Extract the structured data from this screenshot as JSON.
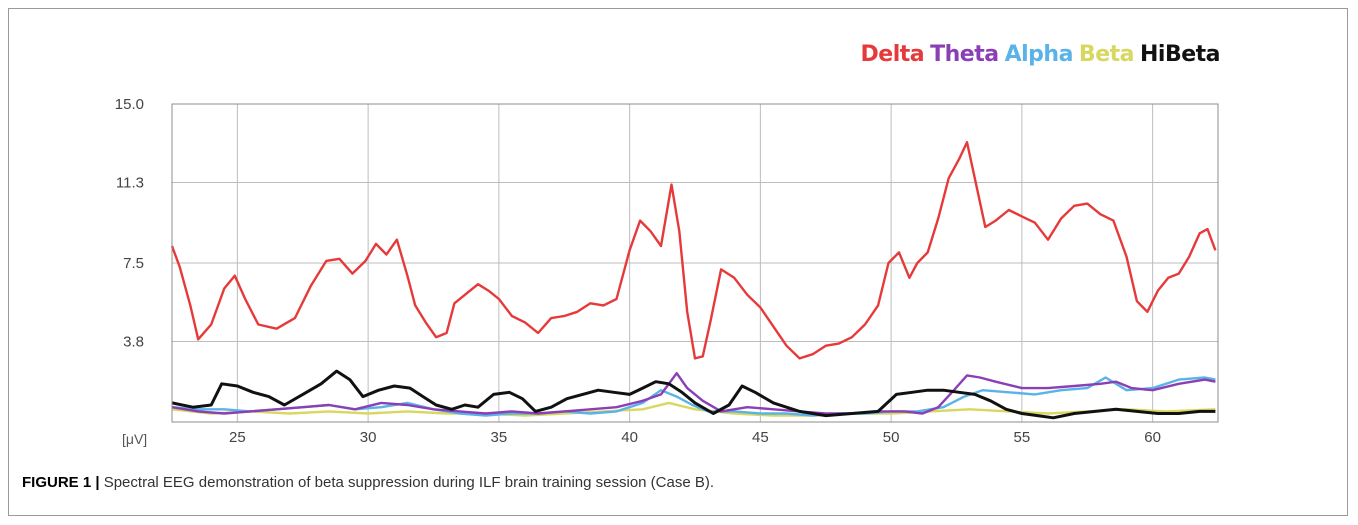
{
  "chart_data": {
    "type": "line",
    "title": "",
    "xlabel": "",
    "ylabel": "[μV]",
    "xlim": [
      22.5,
      62.5
    ],
    "ylim": [
      0,
      15.0
    ],
    "x_ticks": [
      25,
      30,
      35,
      40,
      45,
      50,
      55,
      60
    ],
    "y_ticks": [
      3.8,
      7.5,
      11.3,
      15.0
    ],
    "y_tick_labels": [
      "3.8",
      "7.5",
      "11.3",
      "15.0"
    ],
    "x_tick_labels": [
      "25",
      "30",
      "35",
      "40",
      "45",
      "50",
      "55",
      "60"
    ],
    "grid": true,
    "legend_position": "top-right",
    "series": [
      {
        "name": "Delta",
        "color": "#e63a3a",
        "x": [
          22.5,
          22.8,
          23.2,
          23.5,
          24.0,
          24.5,
          24.9,
          25.3,
          25.8,
          26.5,
          27.2,
          27.8,
          28.4,
          28.9,
          29.4,
          29.9,
          30.3,
          30.7,
          31.1,
          31.5,
          31.8,
          32.2,
          32.6,
          33.0,
          33.3,
          33.7,
          34.2,
          34.6,
          35.0,
          35.5,
          36.0,
          36.5,
          37.0,
          37.5,
          38.0,
          38.5,
          39.0,
          39.5,
          40.0,
          40.4,
          40.8,
          41.2,
          41.6,
          41.9,
          42.2,
          42.5,
          42.8,
          43.1,
          43.5,
          44.0,
          44.5,
          45.0,
          45.5,
          46.0,
          46.5,
          47.0,
          47.5,
          48.0,
          48.5,
          49.0,
          49.5,
          49.9,
          50.3,
          50.7,
          51.0,
          51.4,
          51.8,
          52.2,
          52.6,
          52.9,
          53.2,
          53.6,
          54.0,
          54.5,
          55.0,
          55.5,
          56.0,
          56.5,
          57.0,
          57.5,
          58.0,
          58.5,
          59.0,
          59.4,
          59.8,
          60.2,
          60.6,
          61.0,
          61.4,
          61.8,
          62.1,
          62.4
        ],
        "y": [
          8.3,
          7.3,
          5.5,
          3.9,
          4.6,
          6.3,
          6.9,
          5.8,
          4.6,
          4.4,
          4.9,
          6.4,
          7.6,
          7.7,
          7.0,
          7.6,
          8.4,
          7.9,
          8.6,
          6.9,
          5.5,
          4.7,
          4.0,
          4.2,
          5.6,
          6.0,
          6.5,
          6.2,
          5.8,
          5.0,
          4.7,
          4.2,
          4.9,
          5.0,
          5.2,
          5.6,
          5.5,
          5.8,
          8.1,
          9.5,
          9.0,
          8.3,
          11.2,
          9.0,
          5.2,
          3.0,
          3.1,
          4.8,
          7.2,
          6.8,
          6.0,
          5.4,
          4.5,
          3.6,
          3.0,
          3.2,
          3.6,
          3.7,
          4.0,
          4.6,
          5.5,
          7.5,
          8.0,
          6.8,
          7.5,
          8.0,
          9.6,
          11.5,
          12.4,
          13.2,
          11.5,
          9.2,
          9.5,
          10.0,
          9.7,
          9.4,
          8.6,
          9.6,
          10.2,
          10.3,
          9.8,
          9.5,
          7.8,
          5.7,
          5.2,
          6.2,
          6.8,
          7.0,
          7.8,
          8.9,
          9.1,
          8.1
        ]
      },
      {
        "name": "Theta",
        "color": "#8b3fb5",
        "x": [
          22.5,
          23.5,
          24.5,
          25.5,
          26.5,
          27.5,
          28.5,
          29.5,
          30.5,
          31.5,
          32.5,
          33.5,
          34.5,
          35.5,
          36.5,
          37.5,
          38.5,
          39.5,
          40.5,
          41.2,
          41.8,
          42.2,
          42.8,
          43.5,
          44.5,
          45.5,
          46.5,
          47.5,
          48.5,
          49.5,
          50.5,
          51.2,
          51.8,
          52.4,
          52.9,
          53.4,
          54.0,
          55.0,
          56.0,
          57.0,
          58.0,
          58.6,
          59.2,
          60.0,
          61.0,
          62.0,
          62.4
        ],
        "y": [
          0.7,
          0.5,
          0.4,
          0.5,
          0.6,
          0.7,
          0.8,
          0.6,
          0.9,
          0.8,
          0.6,
          0.5,
          0.4,
          0.5,
          0.4,
          0.5,
          0.6,
          0.7,
          1.0,
          1.3,
          2.3,
          1.6,
          1.0,
          0.5,
          0.7,
          0.6,
          0.5,
          0.4,
          0.4,
          0.5,
          0.5,
          0.4,
          0.7,
          1.5,
          2.2,
          2.1,
          1.9,
          1.6,
          1.6,
          1.7,
          1.8,
          1.9,
          1.6,
          1.5,
          1.8,
          2.0,
          1.9
        ]
      },
      {
        "name": "Alpha",
        "color": "#5ab3e8",
        "x": [
          22.5,
          23.5,
          24.5,
          25.5,
          26.5,
          27.5,
          28.5,
          29.5,
          30.5,
          31.5,
          32.5,
          33.5,
          34.5,
          35.5,
          36.5,
          37.5,
          38.5,
          39.5,
          40.5,
          41.2,
          41.8,
          42.4,
          43.0,
          44.0,
          45.0,
          46.0,
          47.0,
          48.0,
          49.0,
          50.0,
          51.0,
          52.0,
          52.8,
          53.5,
          54.5,
          55.5,
          56.5,
          57.5,
          58.2,
          59.0,
          60.0,
          61.0,
          62.0,
          62.4
        ],
        "y": [
          0.7,
          0.6,
          0.6,
          0.5,
          0.6,
          0.7,
          0.8,
          0.6,
          0.7,
          0.9,
          0.6,
          0.4,
          0.3,
          0.4,
          0.4,
          0.5,
          0.4,
          0.5,
          0.9,
          1.5,
          1.2,
          0.8,
          0.5,
          0.5,
          0.4,
          0.4,
          0.3,
          0.4,
          0.4,
          0.5,
          0.5,
          0.7,
          1.2,
          1.5,
          1.4,
          1.3,
          1.5,
          1.6,
          2.1,
          1.5,
          1.6,
          2.0,
          2.1,
          2.0
        ]
      },
      {
        "name": "Beta",
        "color": "#d8d860",
        "x": [
          22.5,
          24,
          25.5,
          27,
          28.5,
          30,
          31.5,
          33,
          34.5,
          36,
          37.5,
          39,
          40.5,
          41.5,
          42.5,
          44,
          45.5,
          47,
          48.5,
          50,
          51.5,
          53,
          54.5,
          56,
          57.5,
          59,
          60.5,
          62.4
        ],
        "y": [
          0.6,
          0.4,
          0.5,
          0.4,
          0.5,
          0.4,
          0.5,
          0.4,
          0.4,
          0.3,
          0.4,
          0.5,
          0.6,
          0.9,
          0.6,
          0.4,
          0.3,
          0.3,
          0.4,
          0.4,
          0.5,
          0.6,
          0.5,
          0.4,
          0.5,
          0.6,
          0.5,
          0.6
        ]
      },
      {
        "name": "HiBeta",
        "color": "#111111",
        "x": [
          22.5,
          23.3,
          24.0,
          24.4,
          25.0,
          25.6,
          26.2,
          26.8,
          27.5,
          28.2,
          28.8,
          29.3,
          29.8,
          30.4,
          31.0,
          31.6,
          32.1,
          32.6,
          33.2,
          33.7,
          34.2,
          34.8,
          35.4,
          35.9,
          36.4,
          37.0,
          37.6,
          38.2,
          38.8,
          39.4,
          40.0,
          40.5,
          41.0,
          41.5,
          42.0,
          42.5,
          43.2,
          43.8,
          44.3,
          44.8,
          45.5,
          46.5,
          47.5,
          48.5,
          49.5,
          50.2,
          50.8,
          51.4,
          52.0,
          52.6,
          53.2,
          53.8,
          54.4,
          55.0,
          55.6,
          56.2,
          57.0,
          57.8,
          58.6,
          59.4,
          60.2,
          61.0,
          61.8,
          62.4
        ],
        "y": [
          0.9,
          0.7,
          0.8,
          1.8,
          1.7,
          1.4,
          1.2,
          0.8,
          1.3,
          1.8,
          2.4,
          2.0,
          1.2,
          1.5,
          1.7,
          1.6,
          1.2,
          0.8,
          0.6,
          0.8,
          0.7,
          1.3,
          1.4,
          1.1,
          0.5,
          0.7,
          1.1,
          1.3,
          1.5,
          1.4,
          1.3,
          1.6,
          1.9,
          1.8,
          1.4,
          0.9,
          0.4,
          0.8,
          1.7,
          1.4,
          0.9,
          0.5,
          0.3,
          0.4,
          0.5,
          1.3,
          1.4,
          1.5,
          1.5,
          1.4,
          1.3,
          1.0,
          0.6,
          0.4,
          0.3,
          0.2,
          0.4,
          0.5,
          0.6,
          0.5,
          0.4,
          0.4,
          0.5,
          0.5
        ]
      }
    ]
  },
  "caption": {
    "label": "FIGURE 1 |",
    "text": " Spectral EEG demonstration of beta suppression during ILF brain training session (Case B)."
  }
}
